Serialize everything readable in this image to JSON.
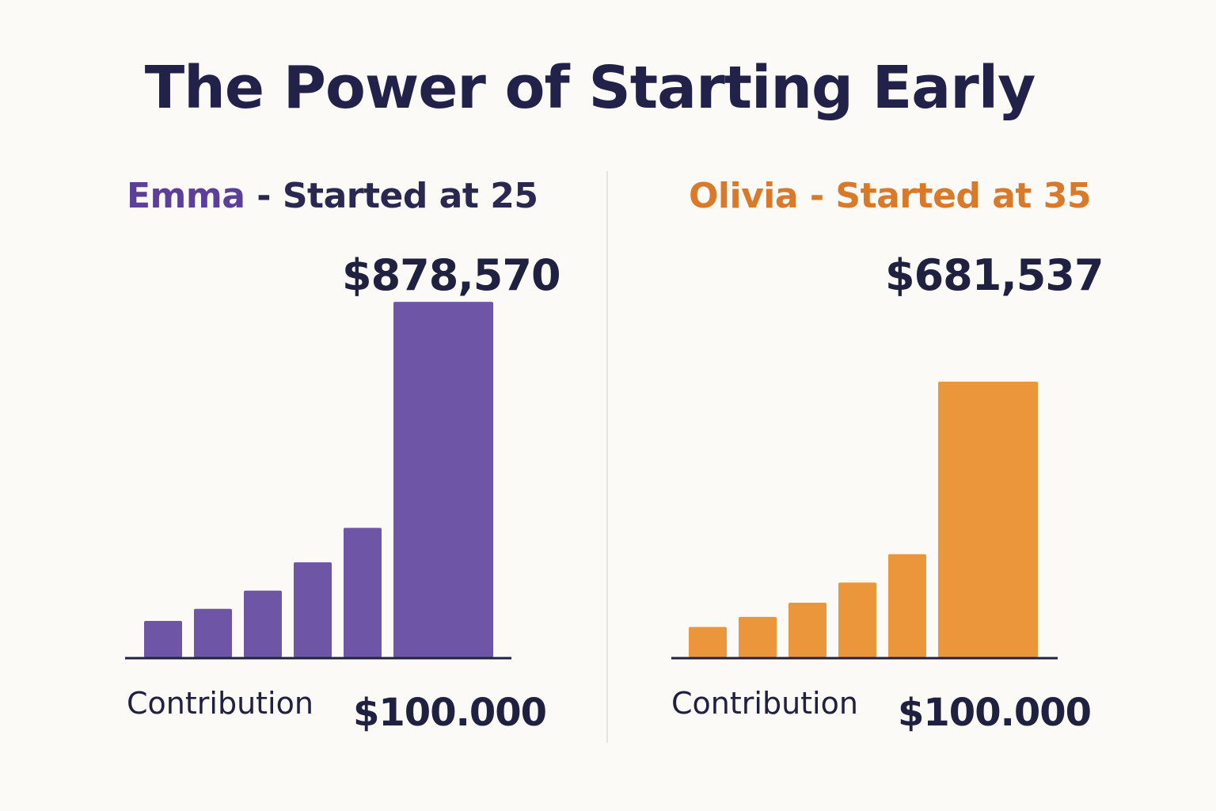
{
  "title": "The Power of Starting Early",
  "panels": {
    "emma": {
      "name": "Emma",
      "heading_rest": " - Started at 25",
      "total": "$878,570",
      "contribution_label": "Contribution",
      "contribution_value": "$100.000"
    },
    "olivia": {
      "heading": "Olivia - Started at 35",
      "total": "$681,537",
      "contribution_label": "Contribution",
      "contribution_value": "$100.000"
    }
  },
  "chart_data": [
    {
      "type": "bar",
      "title": "Emma - Started at 25",
      "series": [
        {
          "name": "Emma",
          "values": [
            90000,
            120000,
            165000,
            235000,
            320000,
            878570
          ]
        }
      ],
      "final_value": 878570,
      "final_value_label": "$878,570",
      "contribution": 100000,
      "ylim": [
        0,
        920000
      ],
      "color": "#6e55a6",
      "xlabel": "",
      "ylabel": ""
    },
    {
      "type": "bar",
      "title": "Olivia - Started at 35",
      "series": [
        {
          "name": "Olivia",
          "values": [
            75000,
            100000,
            135000,
            185000,
            255000,
            681537
          ]
        }
      ],
      "final_value": 681537,
      "final_value_label": "$681,537",
      "contribution": 100000,
      "ylim": [
        0,
        920000
      ],
      "color": "#ec963c",
      "xlabel": "",
      "ylabel": ""
    }
  ],
  "colors": {
    "background": "#fbfaf6",
    "title": "#22214a",
    "emma": "#6e55a6",
    "olivia": "#ec963c",
    "axis": "#22213f"
  }
}
